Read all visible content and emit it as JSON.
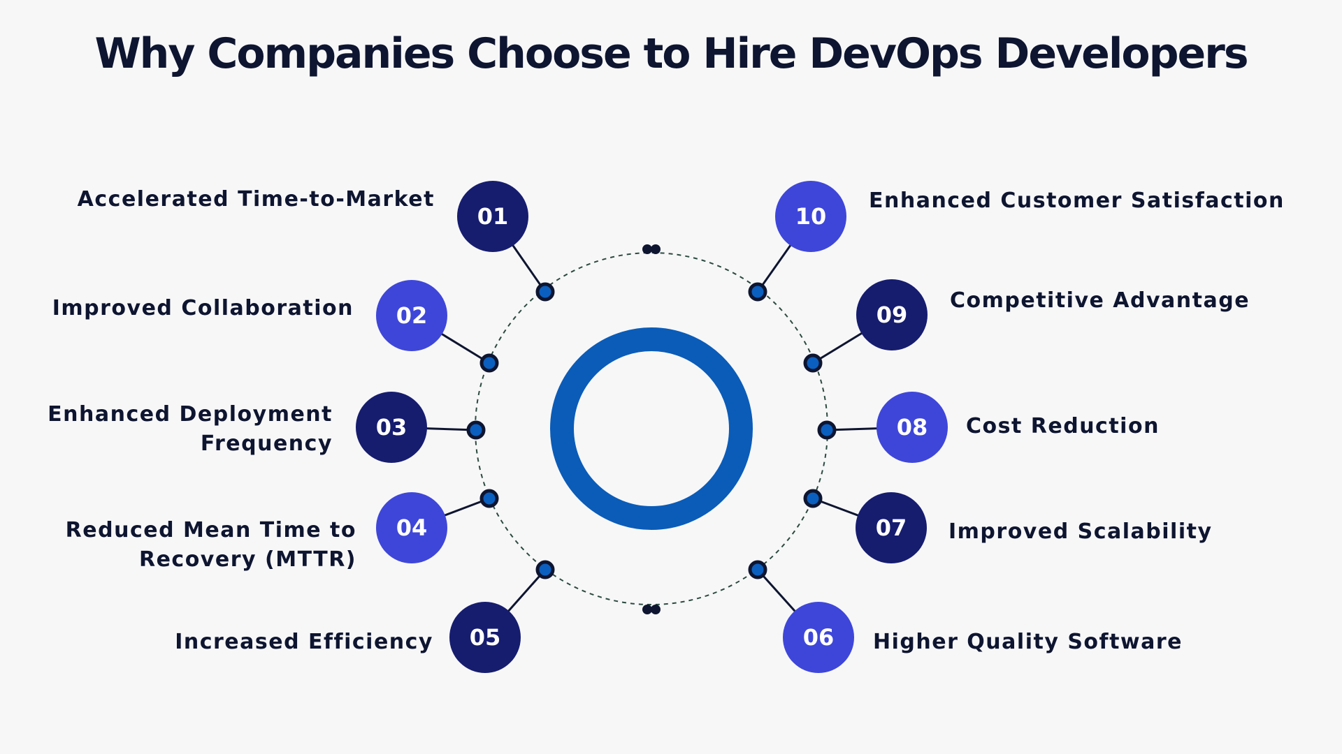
{
  "title": "Why Companies Choose to Hire DevOps Developers",
  "colors": {
    "background": "#f7f7f8",
    "navy": "#161d6f",
    "bright": "#3e46d9",
    "ring": "#0a5cb8",
    "connector_dot": "#0b5fbf",
    "text": "#0e1530"
  },
  "items": [
    {
      "number": "01",
      "label": "Accelerated Time-to-Market",
      "tone": "navy"
    },
    {
      "number": "02",
      "label": "Improved Collaboration",
      "tone": "bright"
    },
    {
      "number": "03",
      "label": "Enhanced Deployment\nFrequency",
      "tone": "navy"
    },
    {
      "number": "04",
      "label": "Reduced Mean Time to\nRecovery (MTTR)",
      "tone": "bright"
    },
    {
      "number": "05",
      "label": "Increased Efficiency",
      "tone": "navy"
    },
    {
      "number": "06",
      "label": "Higher Quality Software",
      "tone": "bright"
    },
    {
      "number": "07",
      "label": "Improved Scalability",
      "tone": "navy"
    },
    {
      "number": "08",
      "label": "Cost Reduction",
      "tone": "bright"
    },
    {
      "number": "09",
      "label": "Competitive Advantage",
      "tone": "navy"
    },
    {
      "number": "10",
      "label": "Enhanced Customer Satisfaction",
      "tone": "bright"
    }
  ]
}
